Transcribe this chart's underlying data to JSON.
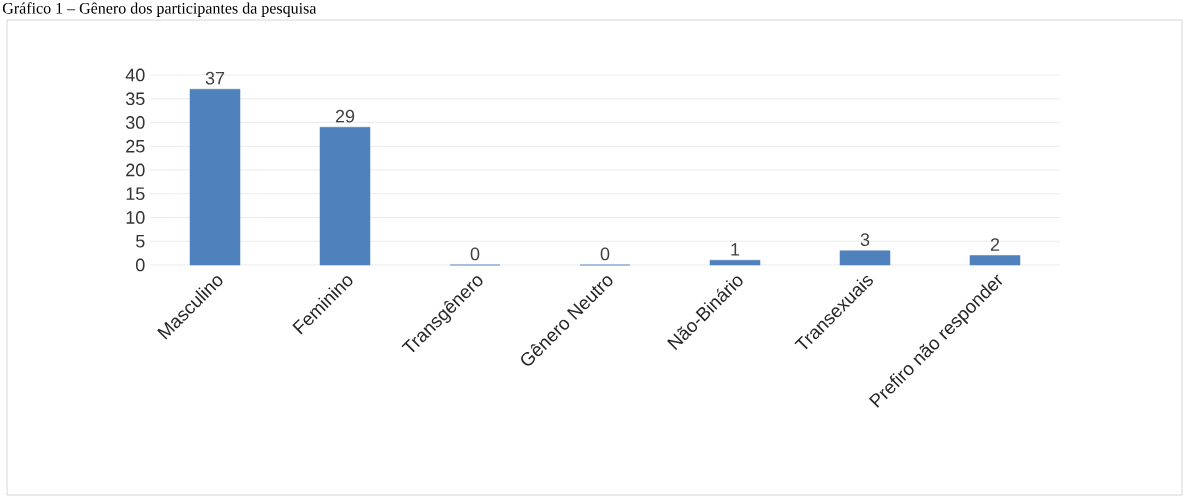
{
  "chart_data": {
    "type": "bar",
    "title": "Gráfico 1 – Gênero dos participantes da pesquisa",
    "categories": [
      "Masculino",
      "Feminino",
      "Transgênero",
      "Gênero Neutro",
      "Não-Binário",
      "Transexuais",
      "Prefiro não responder"
    ],
    "values": [
      37,
      29,
      0,
      0,
      1,
      3,
      2
    ],
    "color": "#4f81bd",
    "data_labels": true,
    "ylim": [
      0,
      40
    ],
    "yticks": [
      0,
      5,
      10,
      15,
      20,
      25,
      30,
      35,
      40
    ],
    "grid": "y"
  }
}
